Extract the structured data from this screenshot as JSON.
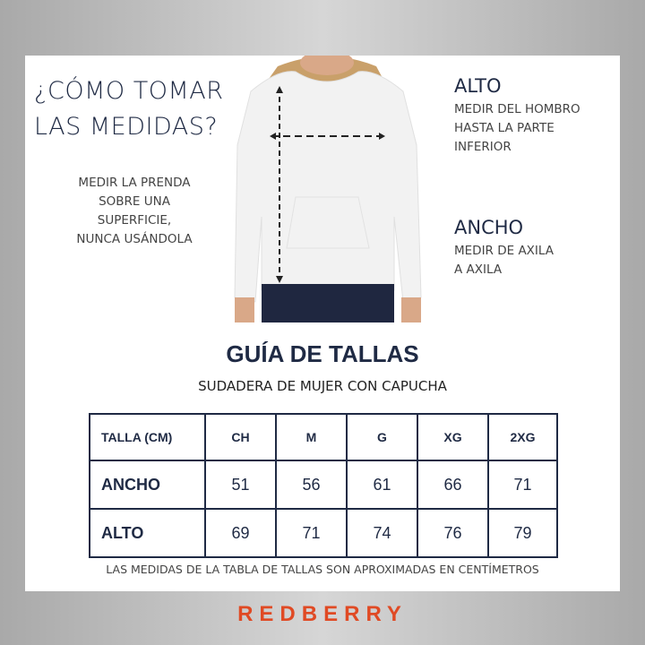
{
  "heading": [
    "¿CÓMO TOMAR",
    "LAS MEDIDAS?"
  ],
  "note": [
    "MEDIR LA PRENDA",
    "SOBRE UNA",
    "SUPERFICIE,",
    "NUNCA USÁNDOLA"
  ],
  "alto": {
    "title": "ALTO",
    "desc": [
      "MEDIR DEL HOMBRO",
      "HASTA LA PARTE",
      "INFERIOR"
    ]
  },
  "ancho": {
    "title": "ANCHO",
    "desc": [
      "MEDIR DE AXILA",
      "A AXILA"
    ]
  },
  "guide": {
    "title": "GUÍA DE TALLAS",
    "subtitle": "SUDADERA DE MUJER CON CAPUCHA"
  },
  "table": {
    "header": [
      "TALLA (CM)",
      "CH",
      "M",
      "G",
      "XG",
      "2XG"
    ],
    "rows": [
      {
        "label": "ANCHO",
        "values": [
          "51",
          "56",
          "61",
          "66",
          "71"
        ]
      },
      {
        "label": "ALTO",
        "values": [
          "69",
          "71",
          "74",
          "76",
          "79"
        ]
      }
    ]
  },
  "footnote": "LAS MEDIDAS DE LA TABLA DE TALLAS SON APROXIMADAS EN CENTÍMETROS",
  "brand": {
    "name": "REDBERRY",
    "color": "#e04a24"
  },
  "colors": {
    "navy": "#1f2a44"
  }
}
